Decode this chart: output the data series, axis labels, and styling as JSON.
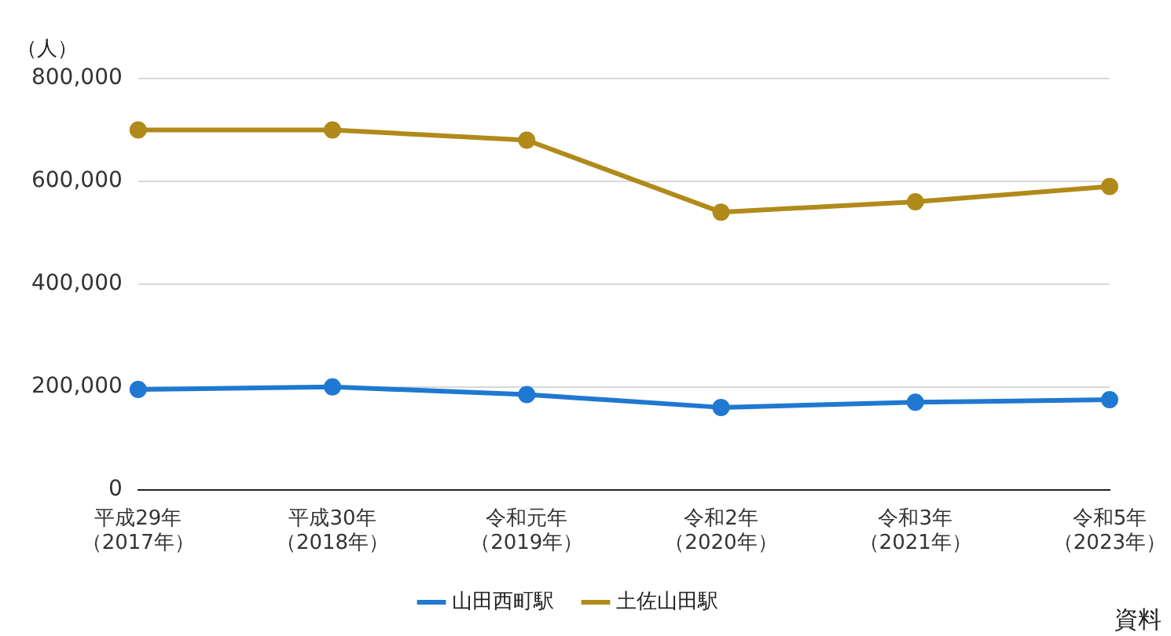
{
  "chart_data": {
    "type": "line",
    "ylabel": "（人）",
    "categories": [
      "平成29年（2017年）",
      "平成30年（2018年）",
      "令和元年（2019年）",
      "令和2年（2020年）",
      "令和3年（2021年）",
      "令和5年（2023年）"
    ],
    "series": [
      {
        "name": "山田西町駅",
        "color": "#1f78d1",
        "values": [
          195000,
          200000,
          185000,
          160000,
          170000,
          175000
        ]
      },
      {
        "name": "土佐山田駅",
        "color": "#b08a1a",
        "values": [
          700000,
          700000,
          680000,
          540000,
          560000,
          590000
        ]
      }
    ],
    "ylim": [
      0,
      800000
    ],
    "yticks": [
      0,
      {
        "value": 200000,
        "label": "200,000"
      },
      {
        "value": 400000,
        "label": "400,000"
      },
      {
        "value": 600000,
        "label": "600,000"
      },
      {
        "value": 800000,
        "label": "800,000"
      }
    ],
    "grid": "y",
    "legend": "bottom",
    "marker": "circle",
    "line_style": "solid",
    "annotations": [
      "資料"
    ]
  }
}
